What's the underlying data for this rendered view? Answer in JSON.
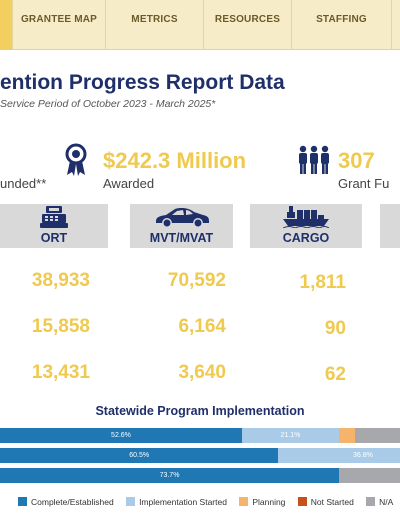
{
  "nav": {
    "items": [
      "GRANTEE MAP",
      "METRICS",
      "RESOURCES",
      "STAFFING"
    ]
  },
  "header": {
    "title": "ention Progress Report Data",
    "subtitle": "Service Period of October 2023 - March 2025*"
  },
  "stats": {
    "funded_label": "unded**",
    "awarded_value": "$242.3 Million",
    "awarded_label": "Awarded",
    "grant_value": "307",
    "grant_label": "Grant Fu"
  },
  "categories": [
    "ORT",
    "MVT/MVAT",
    "CARGO"
  ],
  "rows": [
    [
      "38,933",
      "70,592",
      "1,811"
    ],
    [
      "15,858",
      "6,164",
      "90"
    ],
    [
      "13,431",
      "3,640",
      "62"
    ]
  ],
  "implementation": {
    "title": "Statewide Program Implementation",
    "bars": [
      {
        "complete": 52.6,
        "started": 21.1,
        "planning": 3.5,
        "not_started": 0,
        "complete_label": "52.6%",
        "started_label": "21.1%"
      },
      {
        "complete": 60.5,
        "started": 36.8,
        "planning": 0,
        "not_started": 0,
        "complete_label": "60.5%",
        "started_label": "36.8%"
      },
      {
        "complete": 73.7,
        "started": 0,
        "planning": 0,
        "not_started": 0,
        "complete_label": "73.7%",
        "started_label": ""
      }
    ],
    "legend": [
      "Complete/Established",
      "Implementation Started",
      "Planning",
      "Not Started",
      "N/A"
    ],
    "colors": {
      "complete": "#1f77b4",
      "started": "#a9cbe8",
      "planning": "#f5b36b",
      "not_started": "#c8501b",
      "na": "#a6a8ab"
    }
  },
  "icons": [
    "ribbon-award-icon",
    "people-icon",
    "cash-register-icon",
    "car-icon",
    "cargo-ship-icon"
  ]
}
